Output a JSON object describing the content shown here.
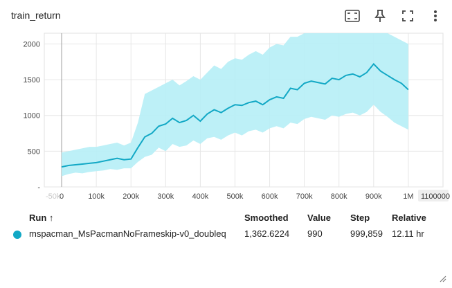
{
  "card": {
    "title": "train_return"
  },
  "toolbar": {
    "icons": [
      "fit-domain-icon",
      "pin-icon",
      "fullscreen-icon",
      "more-vert-icon"
    ]
  },
  "chart_data": {
    "type": "line",
    "title": "train_return",
    "xlabel": "",
    "ylabel": "",
    "xlim": [
      -50000,
      1100000
    ],
    "ylim": [
      0,
      2150
    ],
    "x_ticks": [
      0,
      100000,
      200000,
      300000,
      400000,
      500000,
      600000,
      700000,
      800000,
      900000,
      1000000
    ],
    "x_tick_labels": [
      "0",
      "100k",
      "200k",
      "300k",
      "400k",
      "500k",
      "600k",
      "700k",
      "800k",
      "900k",
      "1M"
    ],
    "x_edge_labels": [
      "-50k",
      "1100000"
    ],
    "y_ticks": [
      0,
      500,
      1000,
      1500,
      2000
    ],
    "y_tick_labels": [
      "-",
      "500",
      "1000",
      "1500",
      "2000"
    ],
    "grid": true,
    "colors": {
      "smoothed": "#12a8c5",
      "raw": "#b6eef6"
    },
    "series": [
      {
        "smoothing": "smoothed",
        "x": [
          0,
          20000,
          40000,
          60000,
          80000,
          100000,
          120000,
          140000,
          160000,
          180000,
          200000,
          220000,
          240000,
          260000,
          280000,
          300000,
          320000,
          340000,
          360000,
          380000,
          400000,
          420000,
          440000,
          460000,
          480000,
          500000,
          520000,
          540000,
          560000,
          580000,
          600000,
          620000,
          640000,
          660000,
          680000,
          700000,
          720000,
          740000,
          760000,
          780000,
          800000,
          820000,
          840000,
          860000,
          880000,
          900000,
          920000,
          940000,
          960000,
          980000,
          1000000
        ],
        "y": [
          280,
          300,
          310,
          320,
          330,
          340,
          360,
          380,
          400,
          380,
          390,
          550,
          700,
          750,
          850,
          880,
          960,
          900,
          930,
          1000,
          920,
          1020,
          1080,
          1040,
          1100,
          1150,
          1140,
          1180,
          1200,
          1150,
          1220,
          1260,
          1240,
          1380,
          1360,
          1450,
          1480,
          1460,
          1440,
          1520,
          1500,
          1560,
          1580,
          1540,
          1600,
          1720,
          1620,
          1560,
          1500,
          1450,
          1360
        ]
      },
      {
        "smoothing": "raw",
        "x": [
          0,
          20000,
          40000,
          60000,
          80000,
          100000,
          120000,
          140000,
          160000,
          180000,
          200000,
          220000,
          240000,
          260000,
          280000,
          300000,
          320000,
          340000,
          360000,
          380000,
          400000,
          420000,
          440000,
          460000,
          480000,
          500000,
          520000,
          540000,
          560000,
          580000,
          600000,
          620000,
          640000,
          660000,
          680000,
          700000,
          720000,
          740000,
          760000,
          780000,
          800000,
          820000,
          840000,
          860000,
          880000,
          900000,
          920000,
          940000,
          960000,
          980000,
          1000000
        ],
        "y_low": [
          150,
          180,
          200,
          190,
          210,
          220,
          230,
          250,
          240,
          260,
          260,
          350,
          420,
          450,
          550,
          500,
          600,
          560,
          580,
          650,
          600,
          680,
          700,
          660,
          720,
          760,
          720,
          780,
          800,
          760,
          820,
          850,
          820,
          900,
          880,
          950,
          980,
          960,
          940,
          1000,
          980,
          1020,
          1040,
          1000,
          1050,
          1150,
          1050,
          980,
          900,
          850,
          800
        ],
        "y_high": [
          480,
          500,
          520,
          540,
          560,
          560,
          580,
          600,
          620,
          580,
          620,
          900,
          1300,
          1350,
          1400,
          1450,
          1500,
          1420,
          1480,
          1550,
          1500,
          1600,
          1700,
          1650,
          1750,
          1800,
          1780,
          1850,
          1900,
          1850,
          1950,
          2000,
          1980,
          2100,
          2100,
          2150,
          2150,
          2150,
          2150,
          2150,
          2150,
          2150,
          2150,
          2150,
          2150,
          2150,
          2150,
          2150,
          2100,
          2050,
          2000
        ]
      }
    ]
  },
  "table": {
    "headers": {
      "run": "Run ↑",
      "smoothed": "Smoothed",
      "value": "Value",
      "step": "Step",
      "relative": "Relative"
    },
    "rows": [
      {
        "run": "mspacman_MsPacmanNoFrameskip-v0_doubleq",
        "smoothed": "1,362.6224",
        "value": "990",
        "step": "999,859",
        "relative": "12.11 hr",
        "color": "#12a8c5"
      }
    ]
  }
}
